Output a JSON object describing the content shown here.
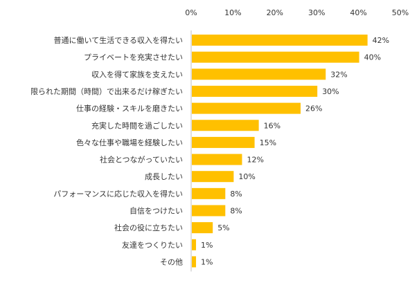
{
  "chart_data": {
    "type": "bar",
    "orientation": "horizontal",
    "title": "",
    "xlabel": "",
    "ylabel": "",
    "xlim": [
      0,
      50
    ],
    "x_ticks": [
      "0%",
      "10%",
      "20%",
      "30%",
      "40%",
      "50%"
    ],
    "x_tick_values": [
      0,
      10,
      20,
      30,
      40,
      50
    ],
    "grid": false,
    "legend": "none",
    "bar_color": "#FFC000",
    "categories": [
      "普通に働いて生活できる収入を得たい",
      "プライベートを充実させたい",
      "収入を得て家族を支えたい",
      "限られた期間（時間）で出来るだけ稼ぎたい",
      "仕事の経験・スキルを磨きたい",
      "充実した時間を過ごしたい",
      "色々な仕事や職場を経験したい",
      "社会とつながっていたい",
      "成長したい",
      "パフォーマンスに応じた収入を得たい",
      "自信をつけたい",
      "社会の役に立ちたい",
      "友達をつくりたい",
      "その他"
    ],
    "values": [
      42,
      40,
      32,
      30,
      26,
      16,
      15,
      12,
      10,
      8,
      8,
      5,
      1,
      1
    ],
    "value_labels": [
      "42%",
      "40%",
      "32%",
      "30%",
      "26%",
      "16%",
      "15%",
      "12%",
      "10%",
      "8%",
      "8%",
      "5%",
      "1%",
      "1%"
    ]
  }
}
